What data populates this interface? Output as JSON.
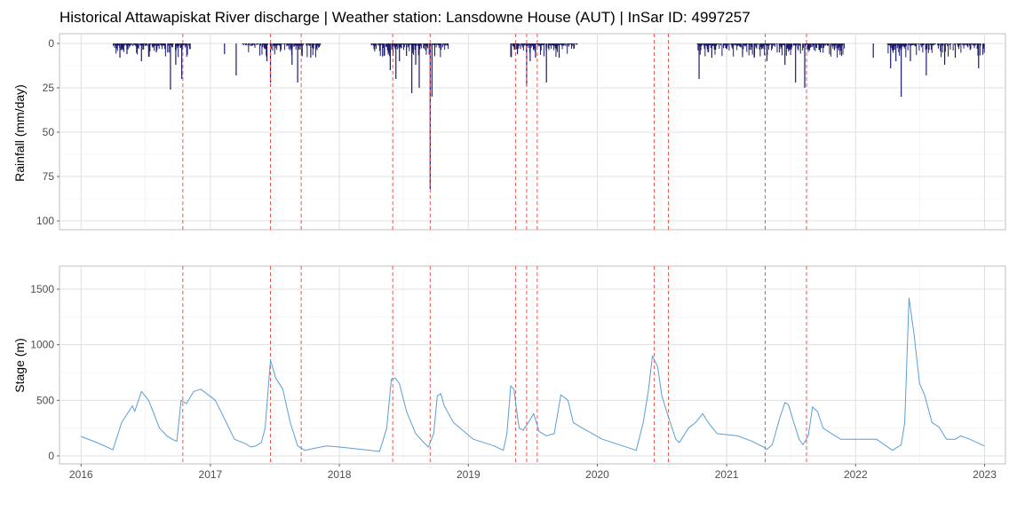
{
  "chart_data": [
    {
      "type": "bar",
      "title": "Historical Attawapiskat River discharge | Weather station: Lansdowne House (AUT) | InSar ID: 4997257",
      "xlabel": "",
      "ylabel": "Rainfall (mm/day)",
      "ylim": [
        0,
        104
      ],
      "y_reversed": true,
      "y_ticks": [
        0,
        25,
        50,
        75,
        100
      ],
      "grid": true,
      "bar_color": "#1a1a6e",
      "rain_periods": [
        {
          "start": "2016-04-01",
          "end": "2016-11-05"
        },
        {
          "start": "2017-04-01",
          "end": "2017-11-10"
        },
        {
          "start": "2018-04-01",
          "end": "2018-11-05"
        },
        {
          "start": "2019-05-01",
          "end": "2019-11-05"
        },
        {
          "start": "2020-10-10",
          "end": "2021-12-01"
        },
        {
          "start": "2022-04-01",
          "end": "2022-12-31"
        }
      ],
      "series": [
        {
          "x": [
            "2016-04-20",
            "2016-05-10",
            "2016-06-20",
            "2016-08-01",
            "2016-09-10",
            "2016-09-25",
            "2016-10-12",
            "2017-02-10",
            "2017-03-15",
            "2017-06-10",
            "2017-06-20",
            "2017-08-20",
            "2017-09-05",
            "2017-10-12",
            "2018-05-25",
            "2018-06-10",
            "2018-06-20",
            "2018-07-10",
            "2018-07-25",
            "2018-08-05",
            "2018-08-15",
            "2018-09-15",
            "2018-09-20",
            "2019-05-20",
            "2019-06-15",
            "2019-06-25",
            "2019-07-10",
            "2019-08-10",
            "2019-09-15",
            "2020-10-15",
            "2020-11-20",
            "2021-02-15",
            "2021-03-20",
            "2021-04-25",
            "2021-06-15",
            "2021-07-15",
            "2021-08-10",
            "2022-02-20",
            "2022-04-10",
            "2022-04-25",
            "2022-05-10",
            "2022-06-05",
            "2022-07-20",
            "2022-09-10",
            "2022-10-10",
            "2022-12-15"
          ],
          "values": [
            8,
            6,
            10,
            5,
            26,
            12,
            20,
            6,
            18,
            10,
            22,
            12,
            22,
            8,
            15,
            20,
            10,
            7,
            28,
            12,
            25,
            82,
            30,
            6,
            24,
            10,
            8,
            22,
            8,
            20,
            8,
            6,
            8,
            10,
            12,
            22,
            25,
            8,
            14,
            10,
            30,
            10,
            18,
            12,
            8,
            14
          ]
        }
      ]
    },
    {
      "type": "line",
      "xlabel": "",
      "ylabel": "Stage (m)",
      "ylim": [
        -25,
        1675
      ],
      "y_ticks": [
        0,
        500,
        1000,
        1500
      ],
      "x_ticks": [
        "2016",
        "2017",
        "2018",
        "2019",
        "2020",
        "2021",
        "2022",
        "2023"
      ],
      "grid": true,
      "line_color": "#5a9ed6",
      "vline_color": "#e8584f",
      "event_dates": [
        "2016-10-15",
        "2017-06-20",
        "2017-09-15",
        "2018-06-01",
        "2018-09-15",
        "2019-05-15",
        "2019-06-15",
        "2019-07-15",
        "2020-06-10",
        "2020-07-20",
        "2021-04-20",
        "2021-08-15"
      ],
      "series": [
        {
          "x": [
            "2016-01-01",
            "2016-02-15",
            "2016-03-31",
            "2016-04-25",
            "2016-05-25",
            "2016-06-01",
            "2016-06-20",
            "2016-07-10",
            "2016-08-10",
            "2016-08-31",
            "2016-09-15",
            "2016-09-28",
            "2016-10-10",
            "2016-10-25",
            "2016-11-15",
            "2016-12-05",
            "2017-01-15",
            "2017-02-15",
            "2017-03-10",
            "2017-04-10",
            "2017-04-25",
            "2017-05-10",
            "2017-05-25",
            "2017-06-05",
            "2017-06-20",
            "2017-07-05",
            "2017-07-25",
            "2017-08-15",
            "2017-09-05",
            "2017-09-25",
            "2017-10-25",
            "2017-11-25",
            "2018-01-01",
            "2018-03-01",
            "2018-04-25",
            "2018-05-15",
            "2018-05-28",
            "2018-06-08",
            "2018-06-20",
            "2018-07-10",
            "2018-08-05",
            "2018-08-28",
            "2018-09-10",
            "2018-09-25",
            "2018-10-05",
            "2018-10-15",
            "2018-10-25",
            "2018-11-20",
            "2019-01-15",
            "2019-03-15",
            "2019-04-10",
            "2019-04-20",
            "2019-05-01",
            "2019-05-10",
            "2019-05-20",
            "2019-05-25",
            "2019-06-05",
            "2019-06-20",
            "2019-07-05",
            "2019-07-20",
            "2019-08-10",
            "2019-09-01",
            "2019-09-20",
            "2019-10-10",
            "2019-10-25",
            "2019-11-20",
            "2020-01-15",
            "2020-04-01",
            "2020-04-20",
            "2020-05-10",
            "2020-05-25",
            "2020-06-05",
            "2020-06-20",
            "2020-07-01",
            "2020-07-15",
            "2020-08-10",
            "2020-08-20",
            "2020-09-15",
            "2020-10-05",
            "2020-10-25",
            "2020-11-10",
            "2020-12-05",
            "2021-02-01",
            "2021-03-15",
            "2021-04-15",
            "2021-04-25",
            "2021-05-10",
            "2021-06-01",
            "2021-06-15",
            "2021-06-25",
            "2021-07-10",
            "2021-07-25",
            "2021-08-05",
            "2021-08-20",
            "2021-09-01",
            "2021-09-15",
            "2021-10-01",
            "2021-10-25",
            "2021-11-20",
            "2021-12-31",
            "2022-03-01",
            "2022-04-15",
            "2022-05-10",
            "2022-05-20",
            "2022-06-01",
            "2022-06-15",
            "2022-07-01",
            "2022-07-15",
            "2022-08-05",
            "2022-08-25",
            "2022-09-15",
            "2022-10-10",
            "2022-10-25",
            "2022-11-20",
            "2022-12-31"
          ],
          "values": [
            175,
            120,
            55,
            300,
            450,
            400,
            580,
            500,
            250,
            180,
            150,
            130,
            500,
            470,
            580,
            600,
            500,
            300,
            150,
            110,
            80,
            90,
            120,
            250,
            860,
            700,
            600,
            300,
            90,
            50,
            70,
            90,
            80,
            60,
            40,
            250,
            690,
            700,
            650,
            400,
            200,
            120,
            80,
            200,
            540,
            560,
            450,
            300,
            150,
            90,
            50,
            200,
            630,
            600,
            350,
            250,
            230,
            300,
            380,
            220,
            180,
            200,
            550,
            500,
            300,
            250,
            150,
            70,
            50,
            300,
            600,
            900,
            800,
            550,
            400,
            150,
            120,
            250,
            300,
            380,
            300,
            200,
            180,
            130,
            80,
            60,
            100,
            350,
            480,
            460,
            300,
            150,
            100,
            180,
            440,
            400,
            250,
            200,
            150,
            150,
            150,
            50,
            100,
            300,
            1420,
            1100,
            650,
            550,
            300,
            260,
            150,
            150,
            180,
            150,
            90
          ]
        }
      ]
    }
  ]
}
